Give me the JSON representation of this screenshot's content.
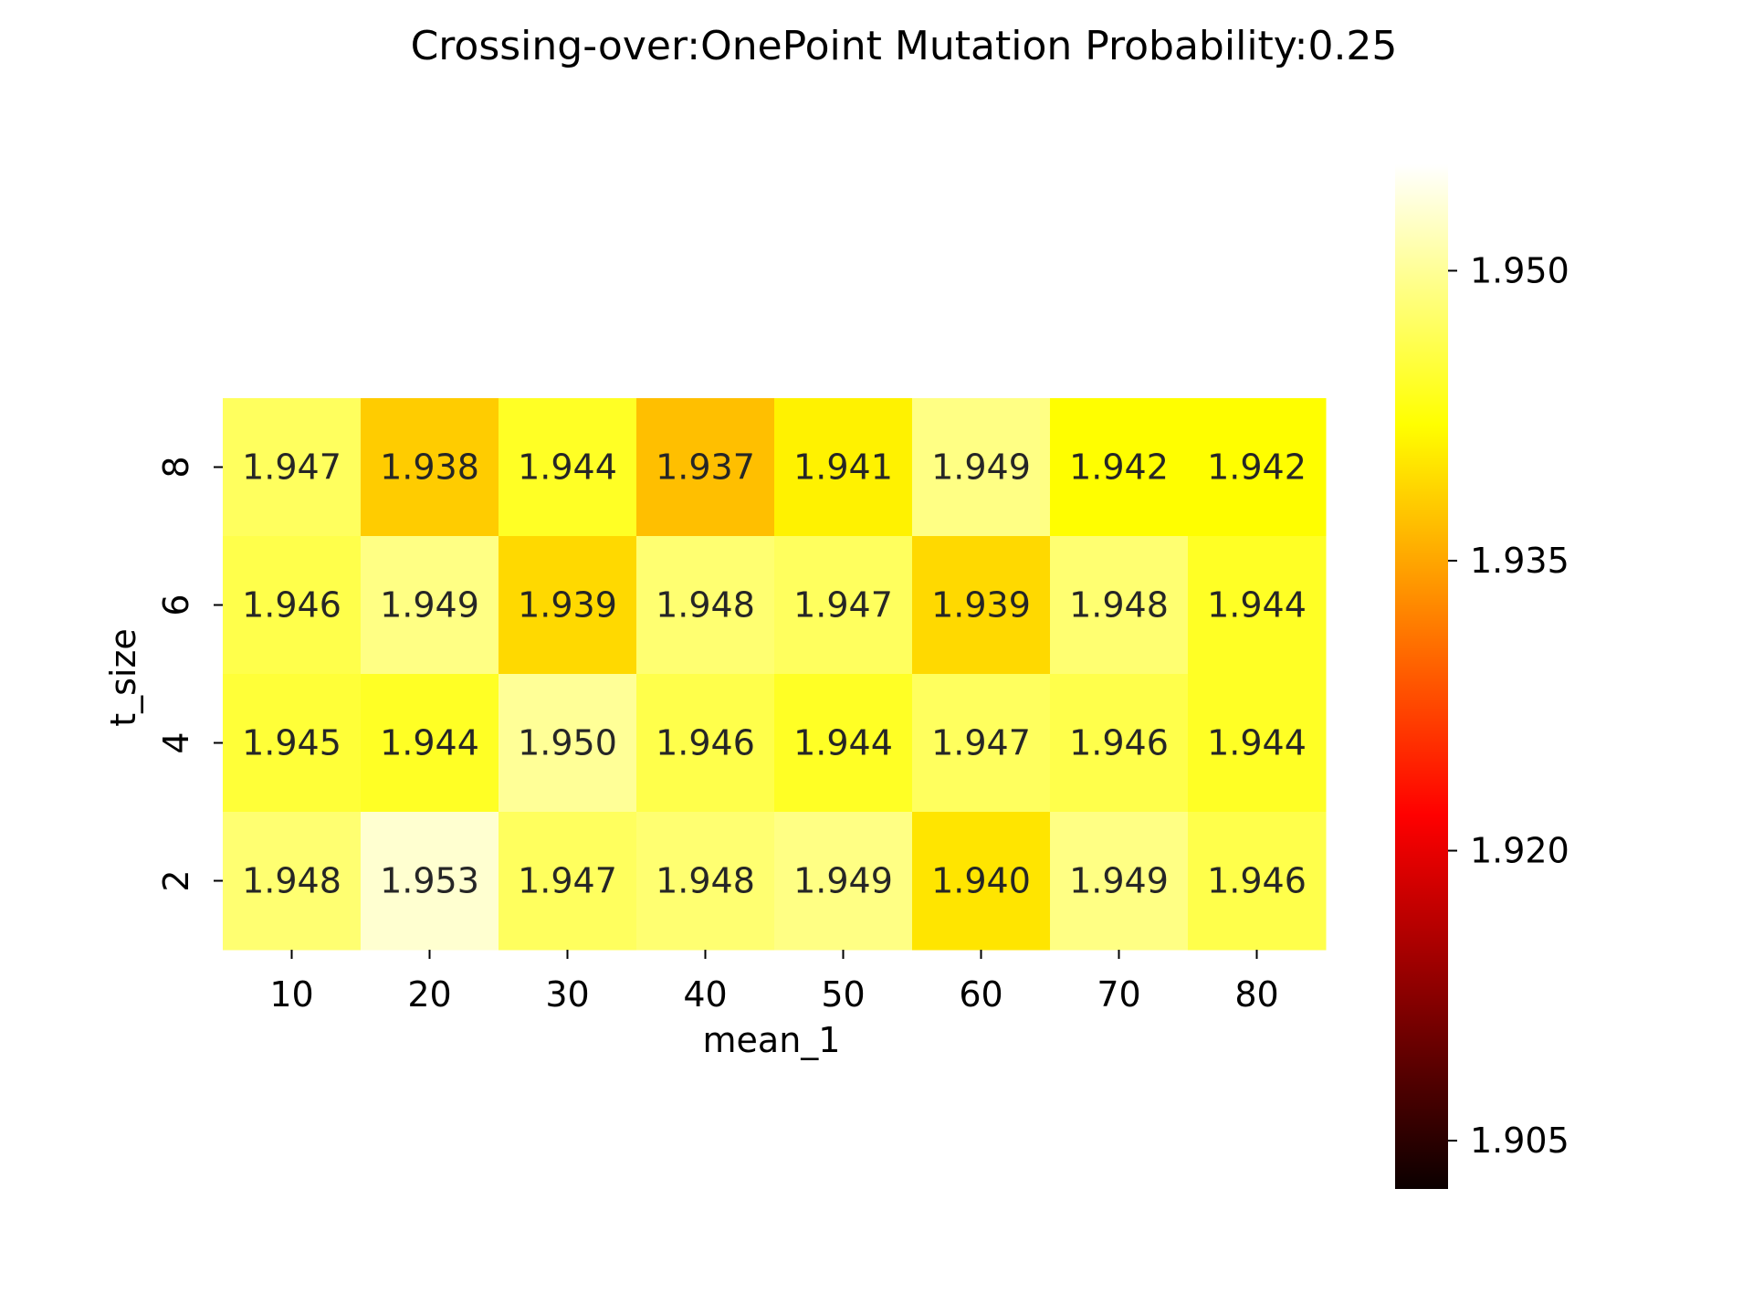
{
  "chart_data": {
    "type": "heatmap",
    "title": "Crossing-over:OnePoint Mutation Probability:0.25",
    "xlabel": "mean_1",
    "ylabel": "t_size",
    "x_categories": [
      "10",
      "20",
      "30",
      "40",
      "50",
      "60",
      "70",
      "80"
    ],
    "y_categories": [
      "8",
      "6",
      "4",
      "2"
    ],
    "values": [
      [
        1.947,
        1.938,
        1.944,
        1.937,
        1.941,
        1.949,
        1.942,
        1.942
      ],
      [
        1.946,
        1.949,
        1.939,
        1.948,
        1.947,
        1.939,
        1.948,
        1.944
      ],
      [
        1.945,
        1.944,
        1.95,
        1.946,
        1.944,
        1.947,
        1.946,
        1.944
      ],
      [
        1.948,
        1.953,
        1.947,
        1.948,
        1.949,
        1.94,
        1.949,
        1.946
      ]
    ],
    "labels": [
      [
        "1.947",
        "1.938",
        "1.944",
        "1.937",
        "1.941",
        "1.949",
        "1.942",
        "1.942"
      ],
      [
        "1.946",
        "1.949",
        "1.939",
        "1.948",
        "1.947",
        "1.939",
        "1.948",
        "1.944"
      ],
      [
        "1.945",
        "1.944",
        "1.950",
        "1.946",
        "1.944",
        "1.947",
        "1.946",
        "1.944"
      ],
      [
        "1.948",
        "1.953",
        "1.947",
        "1.948",
        "1.949",
        "1.940",
        "1.949",
        "1.946"
      ]
    ],
    "colormap": "hot",
    "colorbar": {
      "range": [
        1.9025,
        1.9555
      ],
      "ticks": [
        1.905,
        1.92,
        1.935,
        1.95
      ],
      "tick_labels": [
        "1.905",
        "1.920",
        "1.935",
        "1.950"
      ]
    },
    "legend": "none",
    "grid": false
  }
}
